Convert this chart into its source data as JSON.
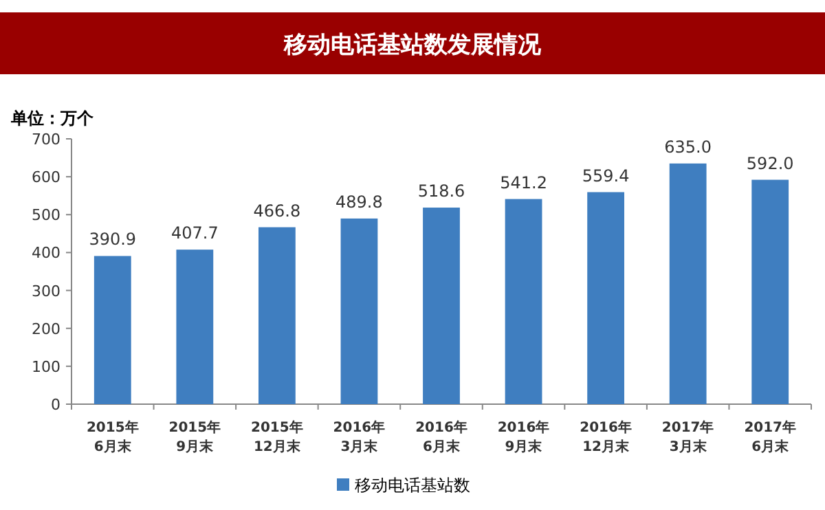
{
  "chart_data": {
    "type": "bar",
    "title": "移动电话基站数发展情况",
    "ylabel": "单位：万个",
    "categories": [
      "2015年6月末",
      "2015年9月末",
      "2015年12月末",
      "2016年3月末",
      "2016年6月末",
      "2016年9月末",
      "2016年12月末",
      "2017年3月末",
      "2017年6月末"
    ],
    "series": [
      {
        "name": "移动电话基站数",
        "color": "#3f7ec0",
        "values": [
          390.9,
          407.7,
          466.8,
          489.8,
          518.6,
          541.2,
          559.4,
          635.0,
          592.0
        ],
        "value_labels": [
          "390.9",
          "407.7",
          "466.8",
          "489.8",
          "518.6",
          "541.2",
          "559.4",
          "635.0",
          "592.0"
        ]
      }
    ],
    "ylim": [
      0,
      700
    ],
    "yticks": [
      0,
      100,
      200,
      300,
      400,
      500,
      600,
      700
    ],
    "legend": "bottom",
    "grid": false
  }
}
